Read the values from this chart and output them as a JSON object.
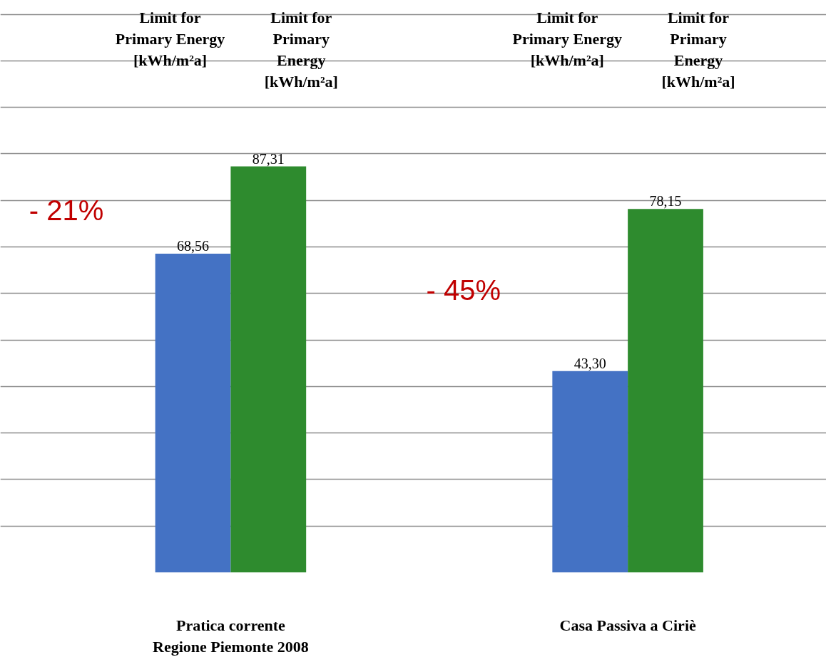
{
  "chart_data": {
    "type": "bar",
    "categories": [
      "Pratica corrente\nRegione Piemonte 2008",
      "Casa Passiva a Ciriè"
    ],
    "series": [
      {
        "color": "#4472c4",
        "values": [
          68.56,
          43.3
        ],
        "value_labels": [
          "68,56",
          "43,30"
        ]
      },
      {
        "color": "#2e8b2e",
        "values": [
          87.31,
          78.15
        ],
        "value_labels": [
          "87,31",
          "78,15"
        ]
      }
    ],
    "grid": "y",
    "tick_labels": "x",
    "annotations": [
      "- 21%",
      "- 45%",
      "Limit for Primary Energy [kWh/m²a]",
      "Limit for Primary Energy [kWh/m²a]",
      "Limit for Primary Energy [kWh/m²a]",
      "Limit for Primary Energy [kWh/m²a]"
    ]
  }
}
